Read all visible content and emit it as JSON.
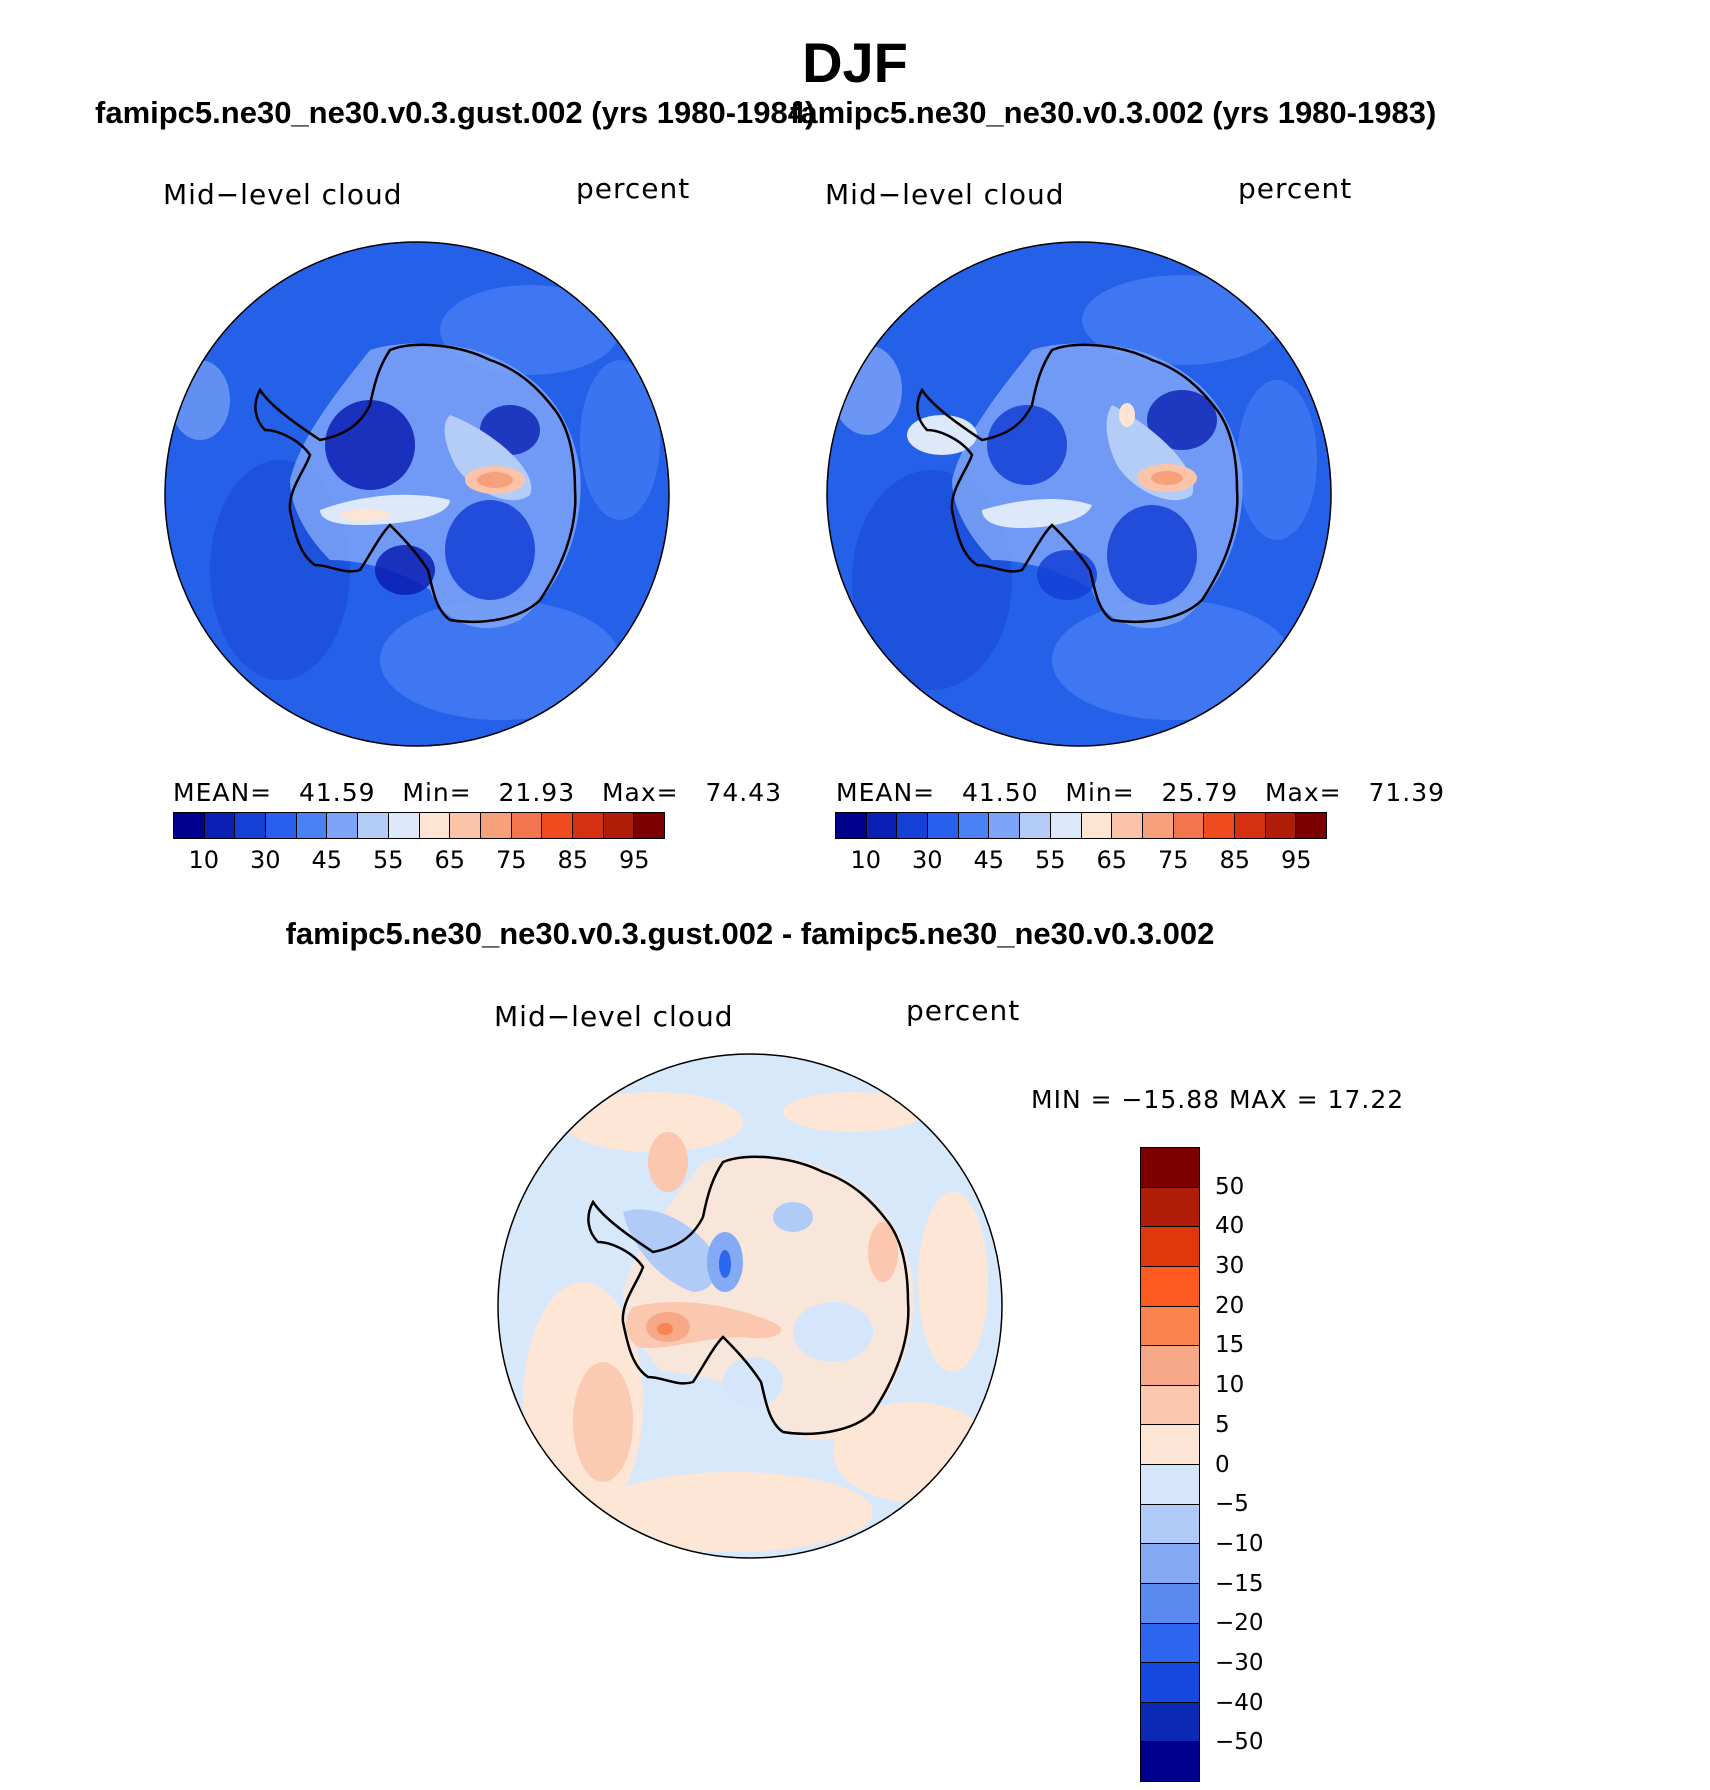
{
  "title": "DJF",
  "panels": [
    {
      "case_title": "famipc5.ne30_ne30.v0.3.gust.002 (yrs 1980-1984)",
      "variable": "Mid−level cloud",
      "units": "percent",
      "stats": {
        "mean_label": "MEAN=",
        "mean": "41.59",
        "min_label": "Min=",
        "min": "21.93",
        "max_label": "Max=",
        "max": "74.43"
      },
      "colorbar_ticks": [
        "10",
        "30",
        "45",
        "55",
        "65",
        "75",
        "85",
        "95"
      ]
    },
    {
      "case_title": "famipc5.ne30_ne30.v0.3.002 (yrs 1980-1983)",
      "variable": "Mid−level cloud",
      "units": "percent",
      "stats": {
        "mean_label": "MEAN=",
        "mean": "41.50",
        "min_label": "Min=",
        "min": "25.79",
        "max_label": "Max=",
        "max": "71.39"
      },
      "colorbar_ticks": [
        "10",
        "30",
        "45",
        "55",
        "65",
        "75",
        "85",
        "95"
      ]
    }
  ],
  "difference": {
    "title": "famipc5.ne30_ne30.v0.3.gust.002 - famipc5.ne30_ne30.v0.3.002",
    "variable": "Mid−level cloud",
    "units": "percent",
    "minmax": "MIN = −15.88  MAX =   17.22",
    "colorbar_ticks": [
      "50",
      "40",
      "30",
      "20",
      "15",
      "10",
      "5",
      "0",
      "−5",
      "−10",
      "−15",
      "−20",
      "−30",
      "−40",
      "−50"
    ]
  },
  "colors": {
    "abs_scale": [
      "#00008f",
      "#0a1fb3",
      "#1440d6",
      "#2660ec",
      "#4a82f5",
      "#7ea4f7",
      "#b3cdf8",
      "#dde9fb",
      "#fde4d3",
      "#fbc4a8",
      "#f7a07c",
      "#f2764d",
      "#ef4b1e",
      "#d5300f",
      "#b01e0a",
      "#7d0000"
    ],
    "diff_scale": [
      "#7d0000",
      "#b01e0a",
      "#e0380c",
      "#ff5a21",
      "#f98450",
      "#f6a888",
      "#fbc7ae",
      "#fde6d6",
      "#d5e6fb",
      "#b0cbf7",
      "#85aaf4",
      "#5a8af0",
      "#2d66ee",
      "#1448e0",
      "#0a2ab5",
      "#00008f"
    ],
    "abs_ocean": "#2460e8",
    "diff_ocean": "#d8e8fb"
  }
}
